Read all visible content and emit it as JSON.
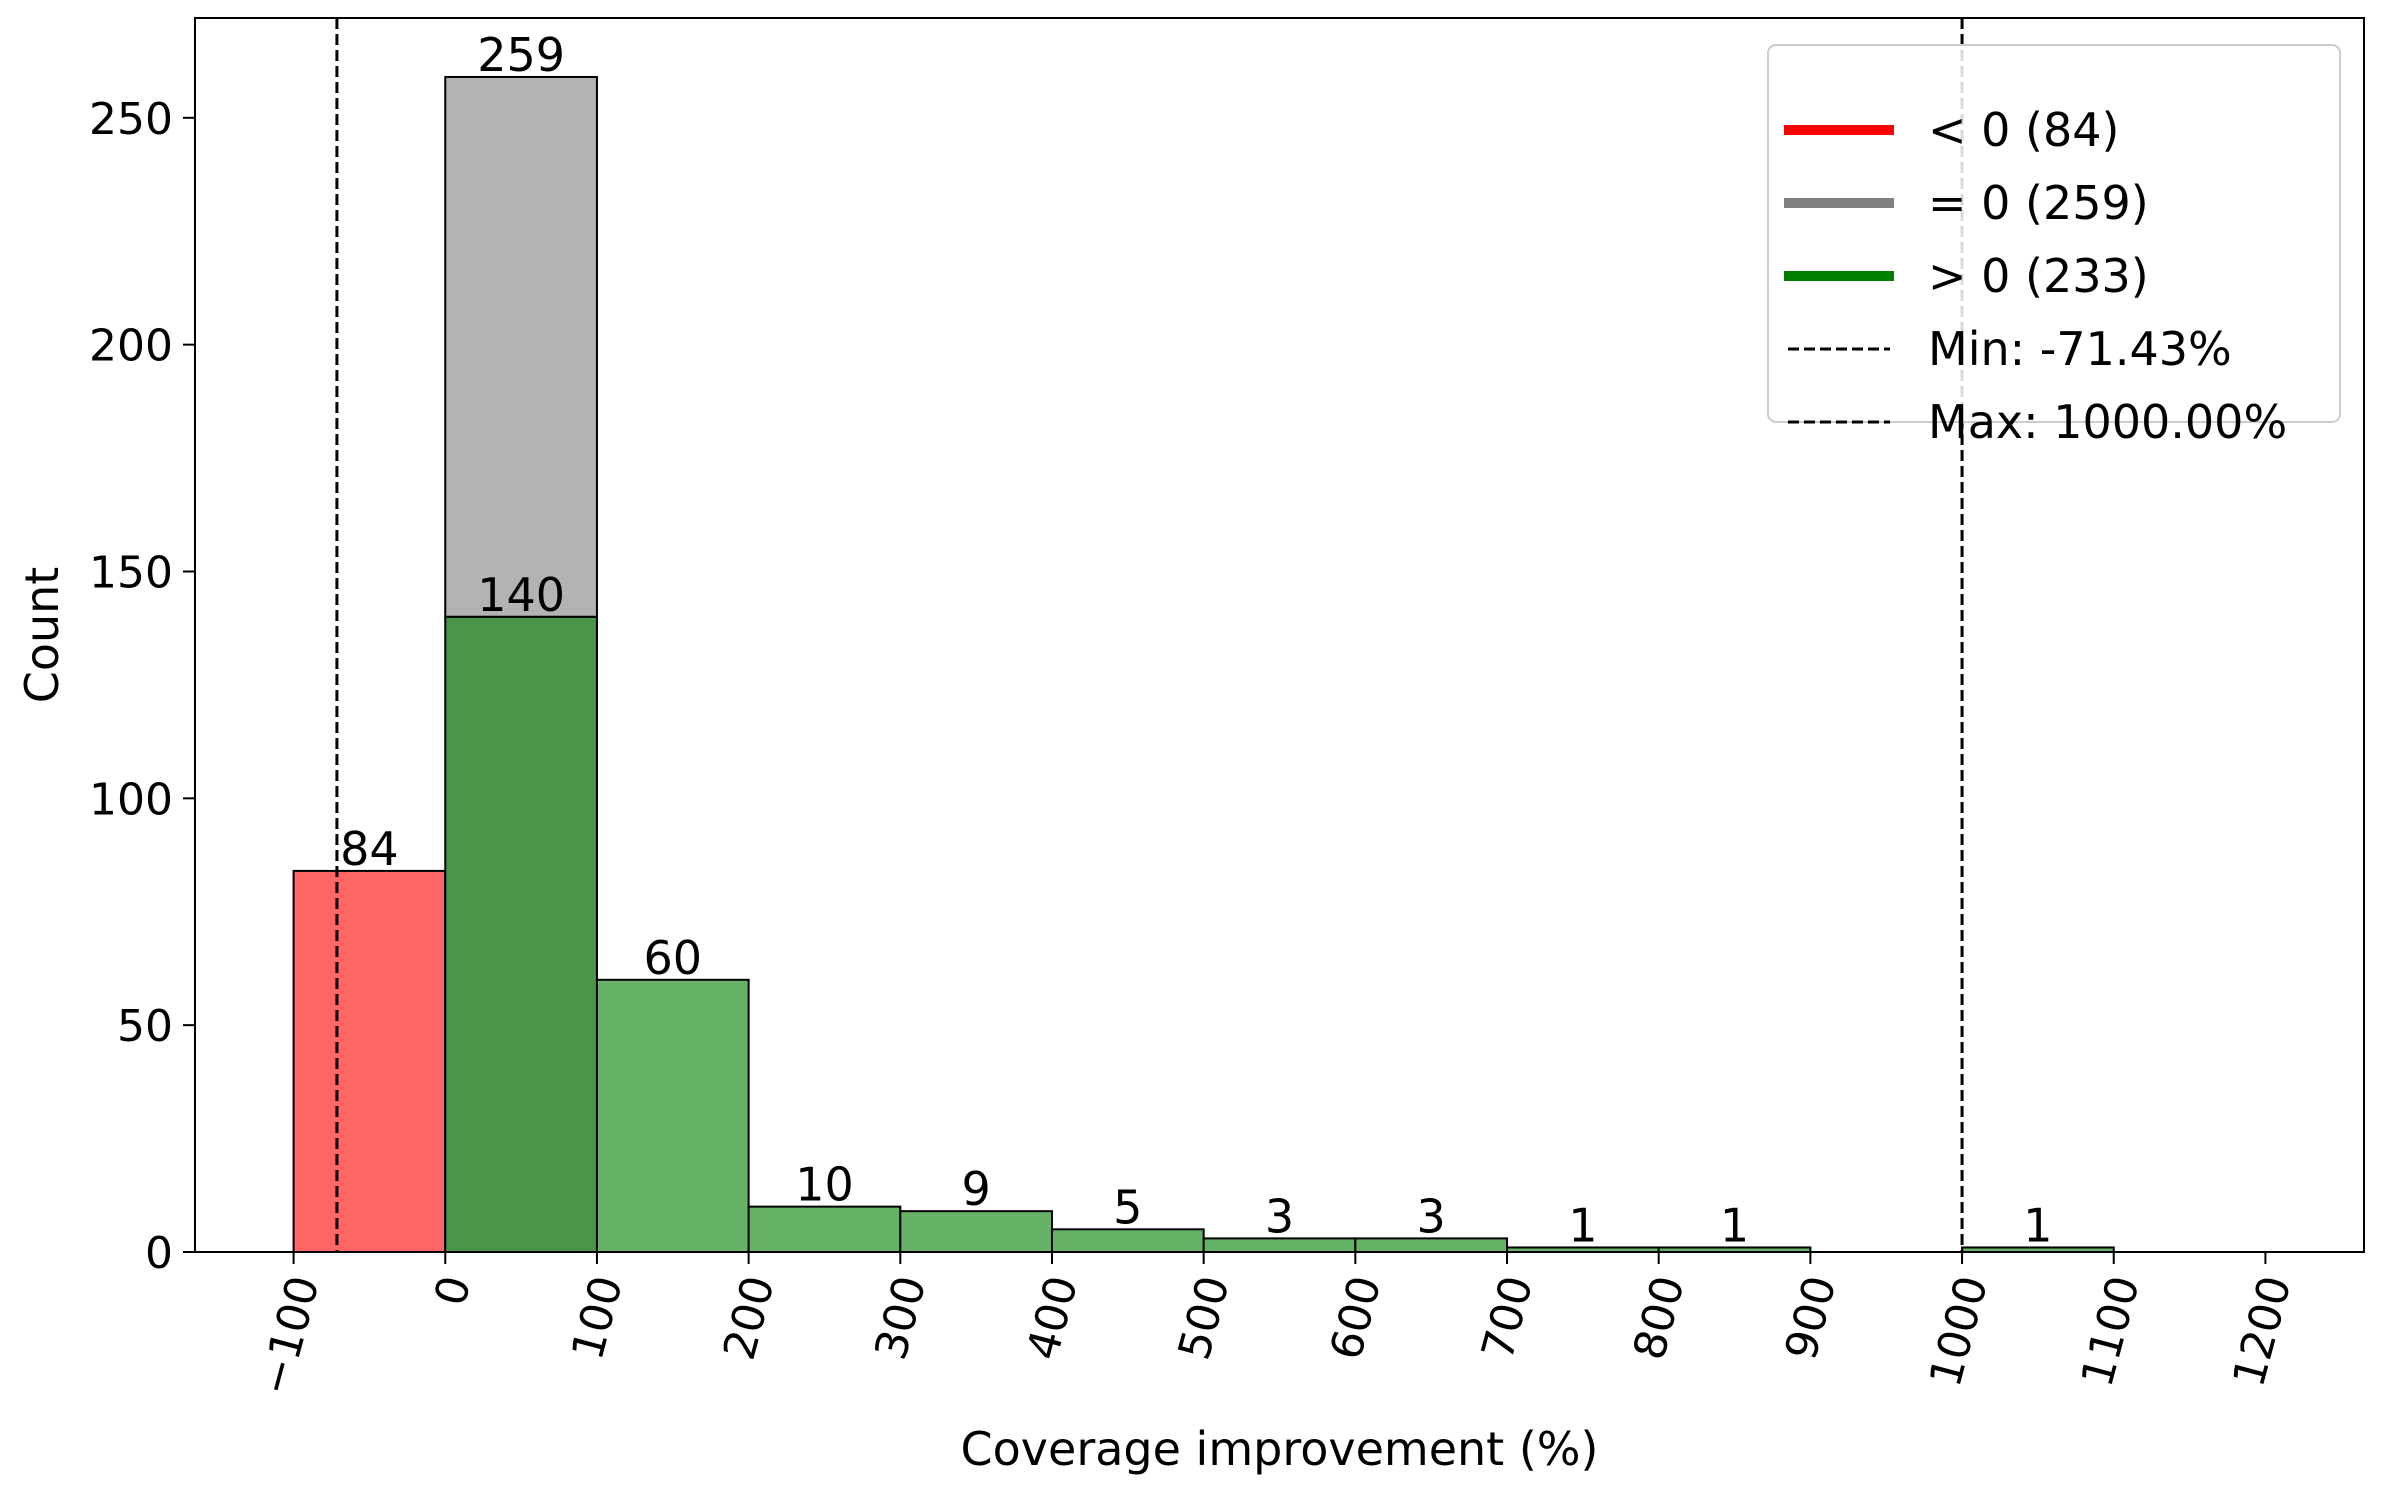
{
  "chart_data": {
    "type": "bar",
    "xlabel": "Coverage improvement (%)",
    "ylabel": "Count",
    "xlim": [
      -165,
      1265
    ],
    "ylim": [
      0,
      272
    ],
    "x_ticks": [
      -100,
      0,
      100,
      200,
      300,
      400,
      500,
      600,
      700,
      800,
      900,
      1000,
      1100,
      1200
    ],
    "x_tick_labels": [
      "−100",
      "0",
      "100",
      "200",
      "300",
      "400",
      "500",
      "600",
      "700",
      "800",
      "900",
      "1000",
      "1100",
      "1200"
    ],
    "y_ticks": [
      0,
      50,
      100,
      150,
      200,
      250
    ],
    "y_tick_labels": [
      "0",
      "50",
      "100",
      "150",
      "200",
      "250"
    ],
    "grid": false,
    "legend_position": "top-right",
    "colors": {
      "negative": "#ff6666",
      "zero": "#b3b3b3",
      "positive_dark": "#4a9548",
      "positive": "#66b266",
      "legend_red": "#ff0000",
      "legend_gray": "#808080",
      "legend_green": "#008000",
      "edge": "#000000"
    },
    "bars": [
      {
        "x0": -100,
        "x1": 0,
        "bottom": 0,
        "height": 84,
        "color_key": "negative",
        "label": "84"
      },
      {
        "x0": 0,
        "x1": 100,
        "bottom": 140,
        "height": 119,
        "color_key": "zero",
        "label": "259"
      },
      {
        "x0": 0,
        "x1": 100,
        "bottom": 0,
        "height": 140,
        "color_key": "positive_dark",
        "label": "140"
      },
      {
        "x0": 100,
        "x1": 200,
        "bottom": 0,
        "height": 60,
        "color_key": "positive",
        "label": "60"
      },
      {
        "x0": 200,
        "x1": 300,
        "bottom": 0,
        "height": 10,
        "color_key": "positive",
        "label": "10"
      },
      {
        "x0": 300,
        "x1": 400,
        "bottom": 0,
        "height": 9,
        "color_key": "positive",
        "label": "9"
      },
      {
        "x0": 400,
        "x1": 500,
        "bottom": 0,
        "height": 5,
        "color_key": "positive",
        "label": "5"
      },
      {
        "x0": 500,
        "x1": 600,
        "bottom": 0,
        "height": 3,
        "color_key": "positive",
        "label": "3"
      },
      {
        "x0": 600,
        "x1": 700,
        "bottom": 0,
        "height": 3,
        "color_key": "positive",
        "label": "3"
      },
      {
        "x0": 700,
        "x1": 800,
        "bottom": 0,
        "height": 1,
        "color_key": "positive",
        "label": "1"
      },
      {
        "x0": 800,
        "x1": 900,
        "bottom": 0,
        "height": 1,
        "color_key": "positive",
        "label": "1"
      },
      {
        "x0": 1000,
        "x1": 1100,
        "bottom": 0,
        "height": 1,
        "color_key": "positive",
        "label": "1"
      }
    ],
    "vlines": [
      {
        "x": -71.43,
        "style": "dashed"
      },
      {
        "x": 1000,
        "style": "dashed"
      }
    ],
    "legend": [
      {
        "label": "< 0 (84)",
        "kind": "line",
        "color_key": "legend_red"
      },
      {
        "label": "= 0 (259)",
        "kind": "line",
        "color_key": "legend_gray"
      },
      {
        "label": "> 0 (233)",
        "kind": "line",
        "color_key": "legend_green"
      },
      {
        "label": "Min: -71.43%",
        "kind": "dashed"
      },
      {
        "label": "Max: 1000.00%",
        "kind": "dashed"
      }
    ]
  }
}
